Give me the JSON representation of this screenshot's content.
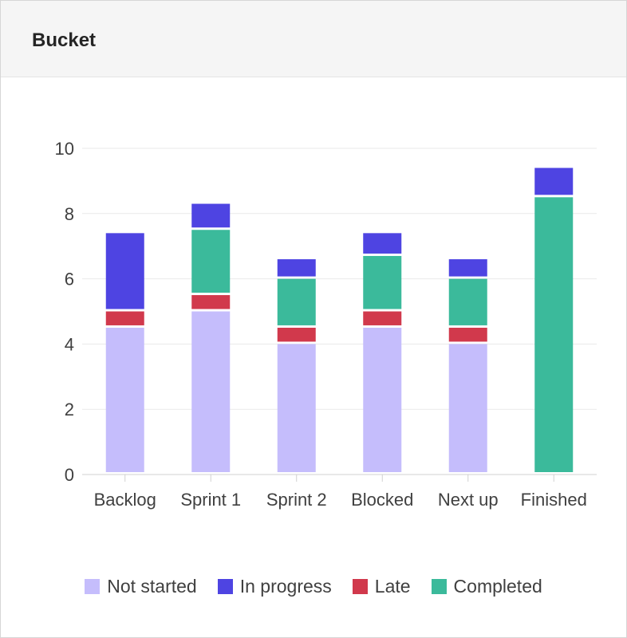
{
  "header": {
    "title": "Bucket"
  },
  "colors": {
    "not_started": "#c5bdfc",
    "in_progress": "#4e44e2",
    "late": "#d1394c",
    "completed": "#3bba9b",
    "grid": "#e9e9e9",
    "axis": "#d0d0d0"
  },
  "chart_data": {
    "type": "bar",
    "stacked": true,
    "title": "",
    "xlabel": "",
    "ylabel": "",
    "ylim": [
      0,
      10
    ],
    "yticks": [
      0,
      2,
      4,
      6,
      8,
      10
    ],
    "grid": true,
    "legend_position": "bottom",
    "categories": [
      "Backlog",
      "Sprint 1",
      "Sprint 2",
      "Blocked",
      "Next up",
      "Finished"
    ],
    "series": [
      {
        "name": "Not started",
        "color_key": "not_started",
        "values": [
          4.5,
          5,
          4,
          4.5,
          4,
          0
        ]
      },
      {
        "name": "Late",
        "color_key": "late",
        "values": [
          0.5,
          0.5,
          0.5,
          0.5,
          0.5,
          0
        ]
      },
      {
        "name": "Completed",
        "color_key": "completed",
        "values": [
          0,
          2,
          1.5,
          1.7,
          1.5,
          8.5
        ]
      },
      {
        "name": "In progress",
        "color_key": "in_progress",
        "values": [
          2.4,
          0.8,
          0.6,
          0.7,
          0.6,
          0.9
        ]
      }
    ],
    "legend": [
      {
        "name": "Not started",
        "color_key": "not_started"
      },
      {
        "name": "In progress",
        "color_key": "in_progress"
      },
      {
        "name": "Late",
        "color_key": "late"
      },
      {
        "name": "Completed",
        "color_key": "completed"
      }
    ]
  }
}
